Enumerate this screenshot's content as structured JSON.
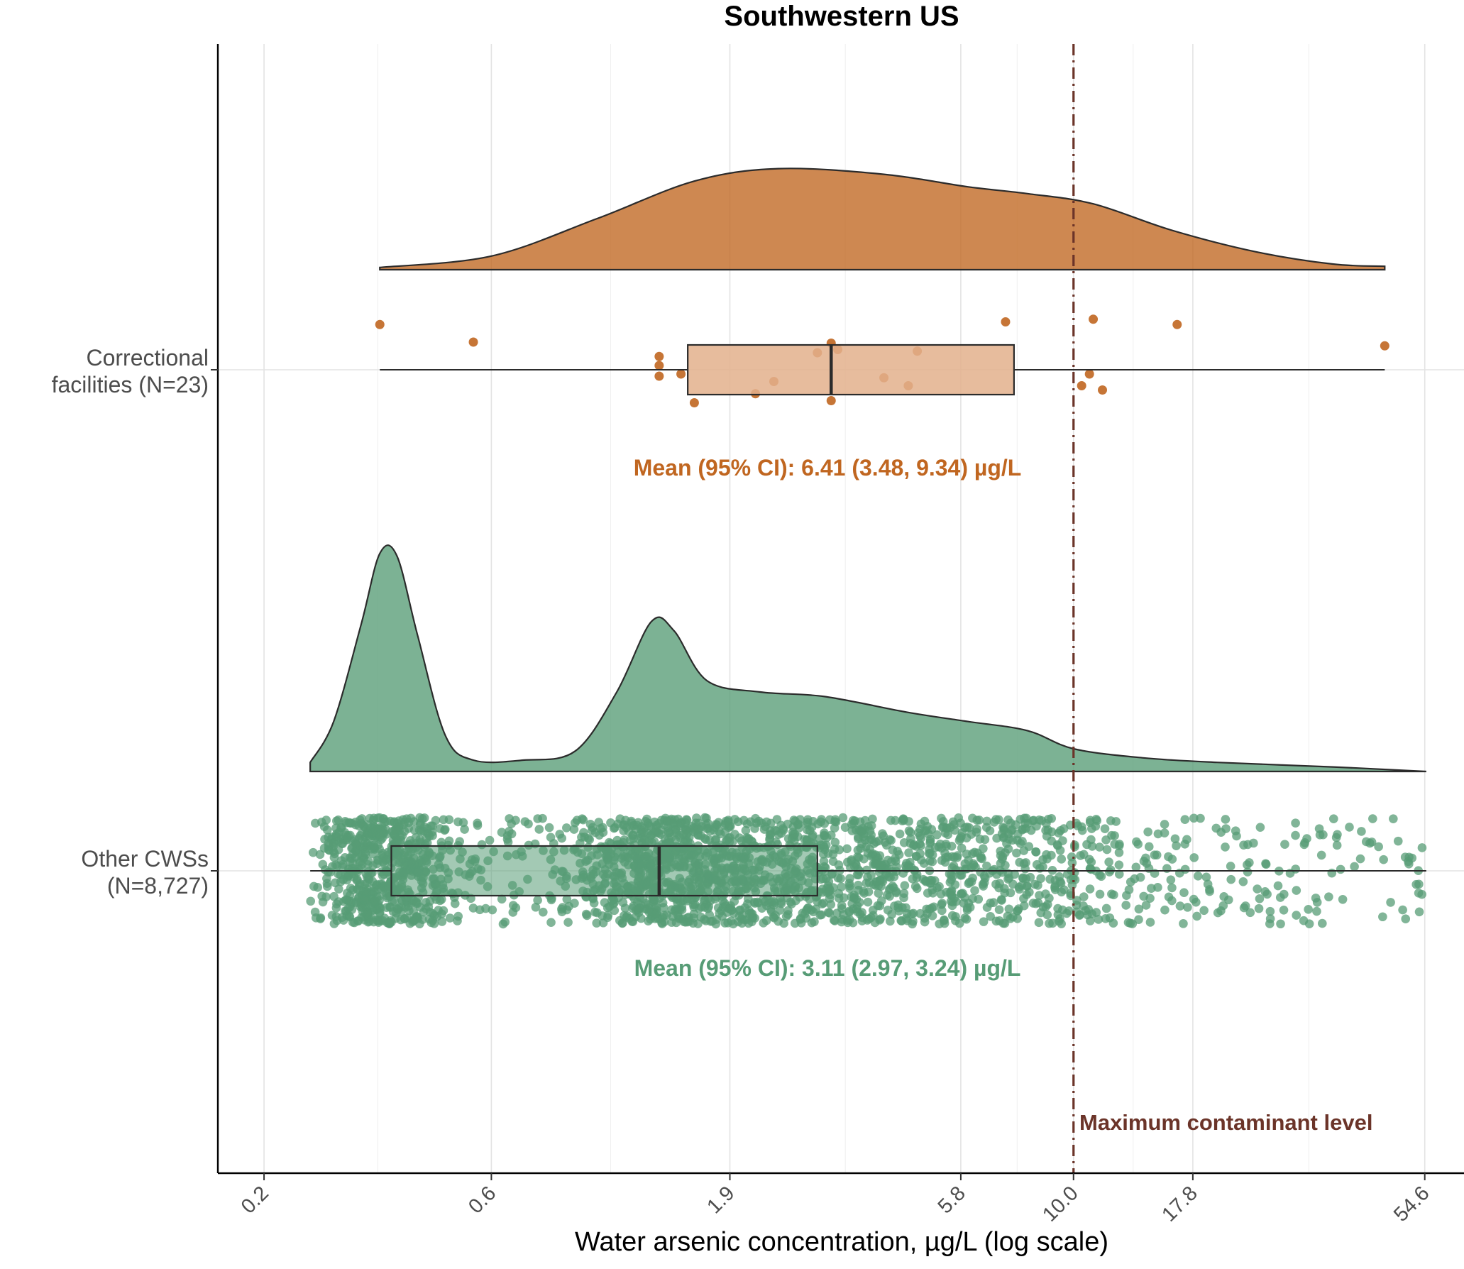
{
  "chart_data": {
    "type": "raincloud",
    "title": "Southwestern US",
    "xlabel": "Water arsenic concentration, µg/L (log scale)",
    "ylabel": "",
    "x_scale": "log",
    "xlim": [
      0.16,
      66
    ],
    "x_ticks": [
      {
        "value": 0.2,
        "label": "0.2"
      },
      {
        "value": 0.6,
        "label": "0.6"
      },
      {
        "value": 1.9,
        "label": "1.9"
      },
      {
        "value": 5.8,
        "label": "5.8"
      },
      {
        "value": 10.0,
        "label": "10.0"
      },
      {
        "value": 17.8,
        "label": "17.8"
      },
      {
        "value": 54.6,
        "label": "54.6"
      }
    ],
    "grid": true,
    "reference_line": {
      "value": 10.0,
      "label": "Maximum contaminant level",
      "color": "#6b3429",
      "style": "dot-dash"
    },
    "groups": [
      {
        "label_line1": "Correctional",
        "label_line2": "facilities (N=23)",
        "color": "#c06620",
        "box_fill": "#e3b08c",
        "mean_label": "Mean (95% CI): 6.41 (3.48, 9.34) µg/L",
        "box": {
          "whisker_low": 0.35,
          "q1": 1.55,
          "median": 3.1,
          "q3": 7.5,
          "whisker_high": 45
        },
        "density": [
          [
            0.35,
            0.02
          ],
          [
            0.6,
            0.12
          ],
          [
            1.0,
            0.45
          ],
          [
            1.6,
            0.78
          ],
          [
            2.4,
            0.89
          ],
          [
            4.0,
            0.84
          ],
          [
            6.0,
            0.73
          ],
          [
            8.0,
            0.67
          ],
          [
            11.0,
            0.58
          ],
          [
            16.0,
            0.35
          ],
          [
            24.0,
            0.16
          ],
          [
            35.0,
            0.05
          ],
          [
            45.0,
            0.03
          ]
        ],
        "points": [
          {
            "x": 0.35,
            "j": 0.85
          },
          {
            "x": 0.55,
            "j": 0.52
          },
          {
            "x": 1.35,
            "j": 0.25
          },
          {
            "x": 1.35,
            "j": 0.08
          },
          {
            "x": 1.35,
            "j": -0.12
          },
          {
            "x": 1.5,
            "j": -0.08
          },
          {
            "x": 1.6,
            "j": -0.62
          },
          {
            "x": 2.15,
            "j": -0.45
          },
          {
            "x": 2.35,
            "j": -0.22
          },
          {
            "x": 2.9,
            "j": 0.32
          },
          {
            "x": 3.1,
            "j": 0.5
          },
          {
            "x": 3.2,
            "j": 0.38
          },
          {
            "x": 3.1,
            "j": -0.58
          },
          {
            "x": 4.0,
            "j": -0.15
          },
          {
            "x": 4.7,
            "j": 0.35
          },
          {
            "x": 4.5,
            "j": -0.3
          },
          {
            "x": 7.2,
            "j": 0.9
          },
          {
            "x": 10.4,
            "j": -0.3
          },
          {
            "x": 10.8,
            "j": -0.08
          },
          {
            "x": 11.0,
            "j": 0.95
          },
          {
            "x": 11.5,
            "j": -0.38
          },
          {
            "x": 16.5,
            "j": 0.85
          },
          {
            "x": 45,
            "j": 0.45
          }
        ]
      },
      {
        "label_line1": "Other CWSs",
        "label_line2": "(N=8,727)",
        "color": "#579c76",
        "box_fill": "#579c76",
        "mean_label": "Mean (95% CI): 3.11 (2.97, 3.24) µg/L",
        "box": {
          "whisker_low": 0.25,
          "q1": 0.37,
          "median": 1.35,
          "q3": 2.9,
          "whisker_high": 55
        },
        "density": [
          [
            0.25,
            0.04
          ],
          [
            0.28,
            0.22
          ],
          [
            0.32,
            0.65
          ],
          [
            0.35,
            0.96
          ],
          [
            0.38,
            0.95
          ],
          [
            0.42,
            0.6
          ],
          [
            0.48,
            0.16
          ],
          [
            0.55,
            0.05
          ],
          [
            0.7,
            0.05
          ],
          [
            0.9,
            0.09
          ],
          [
            1.1,
            0.35
          ],
          [
            1.3,
            0.66
          ],
          [
            1.45,
            0.62
          ],
          [
            1.7,
            0.4
          ],
          [
            2.2,
            0.35
          ],
          [
            3.0,
            0.33
          ],
          [
            4.5,
            0.26
          ],
          [
            6.0,
            0.22
          ],
          [
            8.0,
            0.18
          ],
          [
            10.0,
            0.1
          ],
          [
            14.0,
            0.06
          ],
          [
            20.0,
            0.04
          ],
          [
            35.0,
            0.02
          ],
          [
            55.0,
            0.0
          ]
        ],
        "points_note": "jittered cloud of individual systems"
      }
    ]
  }
}
